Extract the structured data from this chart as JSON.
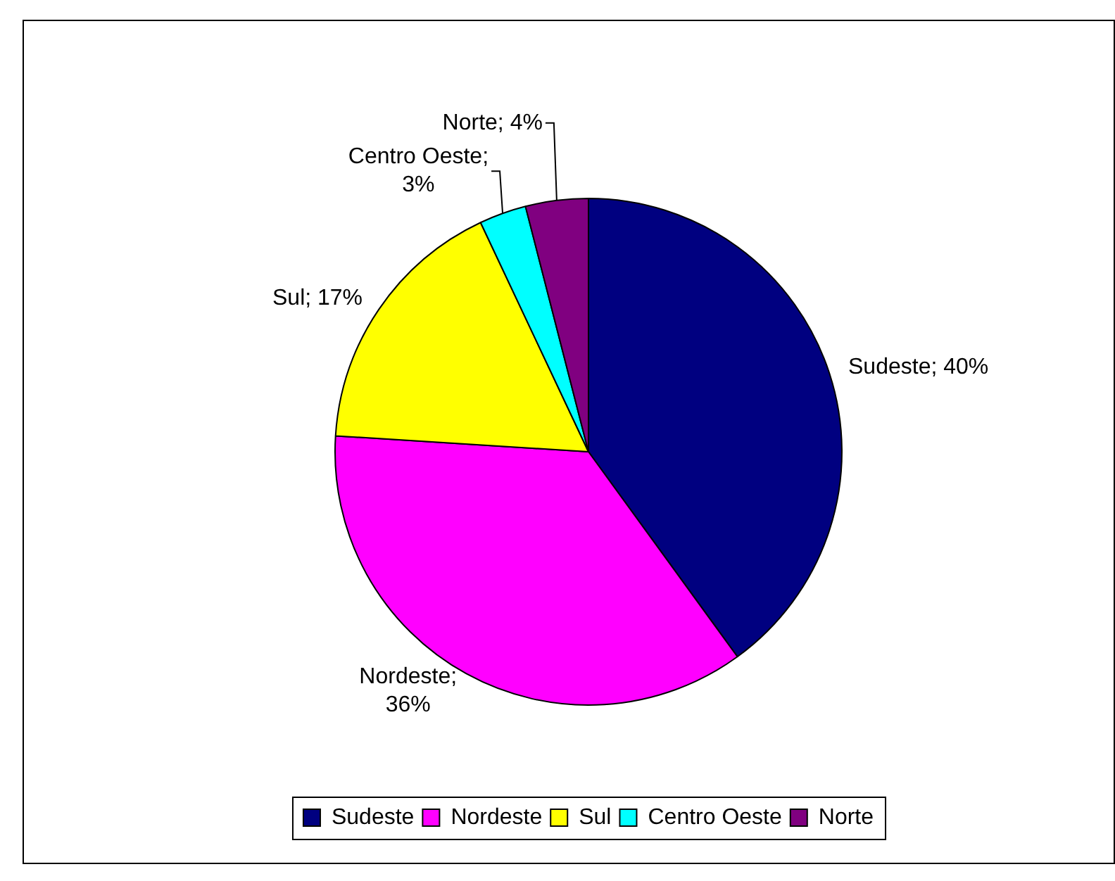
{
  "chart_data": {
    "type": "pie",
    "categories": [
      "Sudeste",
      "Nordeste",
      "Sul",
      "Centro Oeste",
      "Norte"
    ],
    "values": [
      40,
      36,
      17,
      3,
      4
    ],
    "value_labels": [
      "Sudeste; 40%",
      "Nordeste; 36%",
      "Sul; 17%",
      "Centro Oeste; 3%",
      "Norte; 4%"
    ],
    "colors": [
      "#000080",
      "#ff00ff",
      "#ffff00",
      "#00ffff",
      "#800080"
    ],
    "legend": "bottom"
  }
}
